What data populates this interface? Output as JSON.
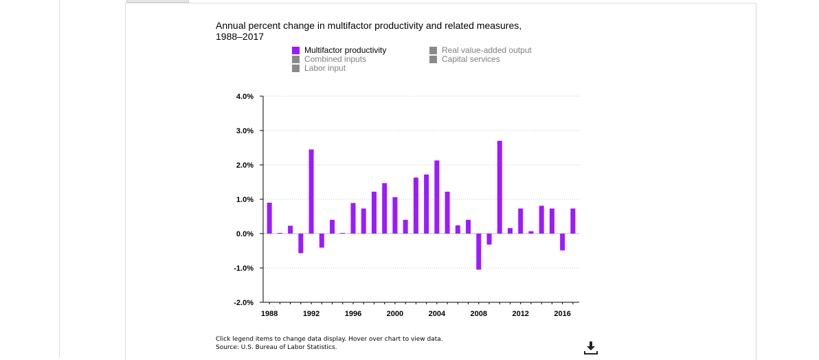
{
  "chart_data": {
    "type": "bar",
    "title": "Annual percent change in multifactor productivity and related measures, 1988–2017",
    "ylim": [
      -2.0,
      4.0
    ],
    "y_ticks": [
      -2.0,
      -1.0,
      0.0,
      1.0,
      2.0,
      3.0,
      4.0
    ],
    "y_tick_labels": [
      "-2.0%",
      "-1.0%",
      "0.0%",
      "1.0%",
      "2.0%",
      "3.0%",
      "4.0%"
    ],
    "x_tick_labels": [
      "1988",
      "1992",
      "1996",
      "2000",
      "2004",
      "2008",
      "2012",
      "2016"
    ],
    "grid": true,
    "legend_position": "top",
    "legend": [
      {
        "label": "Multifactor productivity",
        "color": "#9b1bff",
        "active": true
      },
      {
        "label": "Combined inputs",
        "color": "#8a8a8a",
        "active": false
      },
      {
        "label": "Labor input",
        "color": "#8a8a8a",
        "active": false
      },
      {
        "label": "Real value-added output",
        "color": "#8a8a8a",
        "active": false
      },
      {
        "label": "Capital services",
        "color": "#8a8a8a",
        "active": false
      }
    ],
    "categories": [
      1988,
      1989,
      1990,
      1991,
      1992,
      1993,
      1994,
      1995,
      1996,
      1997,
      1998,
      1999,
      2000,
      2001,
      2002,
      2003,
      2004,
      2005,
      2006,
      2007,
      2008,
      2009,
      2010,
      2011,
      2012,
      2013,
      2014,
      2015,
      2016,
      2017
    ],
    "series": [
      {
        "name": "Multifactor productivity",
        "color": "#9b1bff",
        "values": [
          0.9,
          0.02,
          0.23,
          -0.57,
          2.45,
          -0.41,
          0.4,
          0.02,
          0.89,
          0.73,
          1.22,
          1.47,
          1.06,
          0.4,
          1.63,
          1.72,
          2.13,
          1.22,
          0.24,
          0.4,
          -1.05,
          -0.32,
          2.7,
          0.16,
          0.73,
          0.07,
          0.81,
          0.73,
          -0.49,
          0.73
        ]
      }
    ]
  },
  "footnotes": {
    "line1": "Click legend items to change data display. Hover over chart to view data.",
    "line2": "Source: U.S. Bureau of Labor Statistics."
  },
  "icons": {
    "download": "download-icon"
  }
}
